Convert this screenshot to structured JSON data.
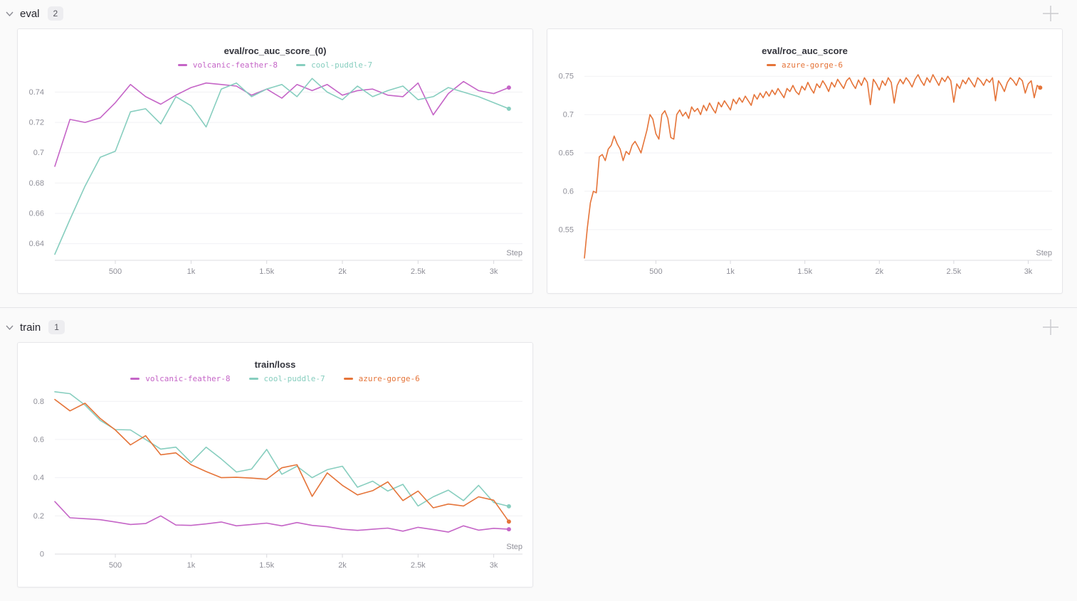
{
  "sections": [
    {
      "label": "eval",
      "count": "2"
    },
    {
      "label": "train",
      "count": "1"
    }
  ],
  "chart_data": [
    {
      "type": "line",
      "title": "eval/roc_auc_score_(0)",
      "xlabel": "Step",
      "legend_position": "top",
      "grid": true,
      "x0": 100,
      "dx": 100,
      "xlim": [
        100,
        3190
      ],
      "ylim": [
        0.629,
        0.7515
      ],
      "xticks": [
        {
          "v": 500,
          "label": "500"
        },
        {
          "v": 1000,
          "label": "1k"
        },
        {
          "v": 1500,
          "label": "1.5k"
        },
        {
          "v": 2000,
          "label": "2k"
        },
        {
          "v": 2500,
          "label": "2.5k"
        },
        {
          "v": 3000,
          "label": "3k"
        }
      ],
      "yticks": [
        {
          "v": 0.64,
          "label": "0.64"
        },
        {
          "v": 0.66,
          "label": "0.66"
        },
        {
          "v": 0.68,
          "label": "0.68"
        },
        {
          "v": 0.7,
          "label": "0.7"
        },
        {
          "v": 0.72,
          "label": "0.72"
        },
        {
          "v": 0.74,
          "label": "0.74"
        }
      ],
      "series": [
        {
          "name": "volcanic-feather-8",
          "color": "#C565C7",
          "values": [
            0.691,
            0.722,
            0.72,
            0.723,
            0.733,
            0.745,
            0.737,
            0.732,
            0.738,
            0.743,
            0.746,
            0.745,
            0.744,
            0.738,
            0.742,
            0.736,
            0.745,
            0.741,
            0.745,
            0.738,
            0.741,
            0.742,
            0.738,
            0.737,
            0.746,
            0.725,
            0.739,
            0.747,
            0.741,
            0.739,
            0.743
          ]
        },
        {
          "name": "cool-puddle-7",
          "color": "#87CEBF",
          "values": [
            0.633,
            0.656,
            0.678,
            0.697,
            0.701,
            0.727,
            0.729,
            0.719,
            0.737,
            0.731,
            0.717,
            0.742,
            0.746,
            0.737,
            0.742,
            0.745,
            0.737,
            0.749,
            0.74,
            0.735,
            0.744,
            0.737,
            0.741,
            0.744,
            0.735,
            0.737,
            0.743,
            0.74,
            0.737,
            0.733,
            0.729
          ]
        }
      ]
    },
    {
      "type": "line",
      "title": "eval/roc_auc_score",
      "xlabel": "Step",
      "legend_position": "top",
      "grid": true,
      "x0": 20,
      "dx": 20,
      "xlim": [
        20,
        3160
      ],
      "ylim": [
        0.51,
        0.752
      ],
      "xticks": [
        {
          "v": 500,
          "label": "500"
        },
        {
          "v": 1000,
          "label": "1k"
        },
        {
          "v": 1500,
          "label": "1.5k"
        },
        {
          "v": 2000,
          "label": "2k"
        },
        {
          "v": 2500,
          "label": "2.5k"
        },
        {
          "v": 3000,
          "label": "3k"
        }
      ],
      "yticks": [
        {
          "v": 0.55,
          "label": "0.55"
        },
        {
          "v": 0.6,
          "label": "0.6"
        },
        {
          "v": 0.65,
          "label": "0.65"
        },
        {
          "v": 0.7,
          "label": "0.7"
        },
        {
          "v": 0.75,
          "label": "0.75"
        }
      ],
      "series": [
        {
          "name": "azure-gorge-6",
          "color": "#E57439",
          "values": [
            0.513,
            0.553,
            0.585,
            0.6,
            0.598,
            0.645,
            0.648,
            0.64,
            0.655,
            0.66,
            0.672,
            0.662,
            0.655,
            0.64,
            0.652,
            0.648,
            0.66,
            0.665,
            0.658,
            0.65,
            0.665,
            0.68,
            0.7,
            0.694,
            0.675,
            0.668,
            0.7,
            0.705,
            0.695,
            0.67,
            0.668,
            0.7,
            0.706,
            0.698,
            0.703,
            0.695,
            0.71,
            0.704,
            0.708,
            0.7,
            0.712,
            0.705,
            0.715,
            0.708,
            0.702,
            0.716,
            0.71,
            0.718,
            0.712,
            0.706,
            0.72,
            0.714,
            0.722,
            0.716,
            0.724,
            0.718,
            0.712,
            0.726,
            0.72,
            0.728,
            0.722,
            0.73,
            0.724,
            0.732,
            0.726,
            0.734,
            0.728,
            0.722,
            0.734,
            0.73,
            0.738,
            0.73,
            0.726,
            0.737,
            0.732,
            0.742,
            0.734,
            0.728,
            0.74,
            0.735,
            0.744,
            0.738,
            0.73,
            0.742,
            0.736,
            0.746,
            0.74,
            0.734,
            0.744,
            0.748,
            0.74,
            0.734,
            0.745,
            0.738,
            0.748,
            0.742,
            0.713,
            0.746,
            0.74,
            0.732,
            0.744,
            0.738,
            0.748,
            0.742,
            0.715,
            0.738,
            0.746,
            0.74,
            0.748,
            0.743,
            0.736,
            0.746,
            0.752,
            0.744,
            0.738,
            0.748,
            0.742,
            0.752,
            0.745,
            0.738,
            0.748,
            0.743,
            0.75,
            0.744,
            0.716,
            0.74,
            0.734,
            0.745,
            0.74,
            0.748,
            0.742,
            0.736,
            0.748,
            0.744,
            0.738,
            0.746,
            0.742,
            0.748,
            0.718,
            0.744,
            0.738,
            0.73,
            0.742,
            0.748,
            0.744,
            0.738,
            0.748,
            0.744,
            0.728,
            0.74,
            0.744,
            0.722,
            0.738,
            0.735
          ]
        }
      ]
    },
    {
      "type": "line",
      "title": "train/loss",
      "xlabel": "Step",
      "legend_position": "top",
      "grid": true,
      "x0": 100,
      "dx": 100,
      "xlim": [
        100,
        3190
      ],
      "ylim": [
        0,
        0.868
      ],
      "xticks": [
        {
          "v": 500,
          "label": "500"
        },
        {
          "v": 1000,
          "label": "1k"
        },
        {
          "v": 1500,
          "label": "1.5k"
        },
        {
          "v": 2000,
          "label": "2k"
        },
        {
          "v": 2500,
          "label": "2.5k"
        },
        {
          "v": 3000,
          "label": "3k"
        }
      ],
      "yticks": [
        {
          "v": 0,
          "label": "0"
        },
        {
          "v": 0.2,
          "label": "0.2"
        },
        {
          "v": 0.4,
          "label": "0.4"
        },
        {
          "v": 0.6,
          "label": "0.6"
        },
        {
          "v": 0.8,
          "label": "0.8"
        }
      ],
      "series": [
        {
          "name": "volcanic-feather-8",
          "color": "#C565C7",
          "values": [
            0.275,
            0.19,
            0.185,
            0.18,
            0.168,
            0.155,
            0.16,
            0.2,
            0.152,
            0.15,
            0.158,
            0.168,
            0.148,
            0.155,
            0.162,
            0.148,
            0.165,
            0.15,
            0.143,
            0.13,
            0.124,
            0.13,
            0.136,
            0.12,
            0.14,
            0.128,
            0.115,
            0.148,
            0.125,
            0.135,
            0.13
          ]
        },
        {
          "name": "cool-puddle-7",
          "color": "#87CEBF",
          "values": [
            0.85,
            0.84,
            0.78,
            0.7,
            0.652,
            0.65,
            0.6,
            0.55,
            0.56,
            0.48,
            0.56,
            0.498,
            0.43,
            0.445,
            0.548,
            0.418,
            0.46,
            0.4,
            0.442,
            0.46,
            0.35,
            0.382,
            0.33,
            0.365,
            0.252,
            0.3,
            0.335,
            0.28,
            0.36,
            0.27,
            0.25
          ]
        },
        {
          "name": "azure-gorge-6",
          "color": "#E57439",
          "values": [
            0.81,
            0.75,
            0.79,
            0.71,
            0.65,
            0.572,
            0.62,
            0.52,
            0.53,
            0.468,
            0.432,
            0.4,
            0.402,
            0.398,
            0.392,
            0.452,
            0.468,
            0.302,
            0.425,
            0.36,
            0.31,
            0.332,
            0.378,
            0.28,
            0.33,
            0.242,
            0.262,
            0.252,
            0.3,
            0.282,
            0.17
          ]
        }
      ]
    }
  ]
}
